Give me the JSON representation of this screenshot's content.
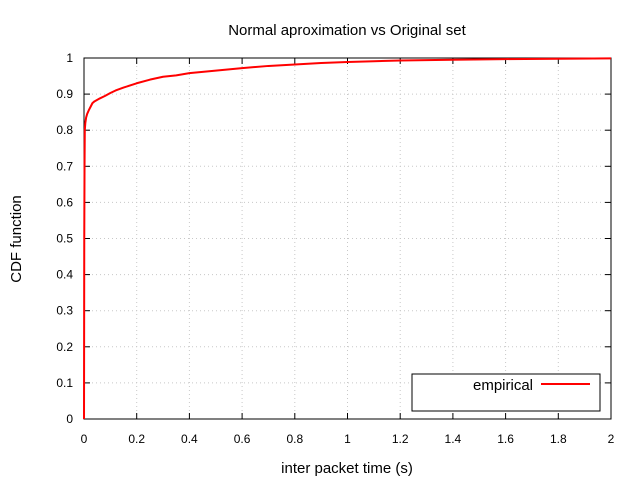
{
  "chart_data": {
    "type": "line",
    "title": "Normal aproximation vs Original set",
    "xlabel": "inter packet time (s)",
    "ylabel": "CDF function",
    "xlim": [
      0,
      2
    ],
    "ylim": [
      0,
      1
    ],
    "xticks": [
      0,
      0.2,
      0.4,
      0.6,
      0.8,
      1,
      1.2,
      1.4,
      1.6,
      1.8,
      2
    ],
    "xtick_labels": [
      "0",
      "0.2",
      "0.4",
      "0.6",
      "0.8",
      "1",
      "1.2",
      "1.4",
      "1.6",
      "1.8",
      "2"
    ],
    "yticks": [
      0,
      0.1,
      0.2,
      0.3,
      0.4,
      0.5,
      0.6,
      0.7,
      0.8,
      0.9,
      1
    ],
    "ytick_labels": [
      "0",
      "0.1",
      "0.2",
      "0.3",
      "0.4",
      "0.5",
      "0.6",
      "0.7",
      "0.8",
      "0.9",
      "1"
    ],
    "grid": true,
    "legend_position": "bottom-right",
    "series": [
      {
        "name": "empirical",
        "color": "#ff0000",
        "x": [
          0,
          0.001,
          0.002,
          0.003,
          0.005,
          0.008,
          0.012,
          0.018,
          0.025,
          0.032,
          0.04,
          0.06,
          0.08,
          0.1,
          0.12,
          0.15,
          0.2,
          0.25,
          0.3,
          0.35,
          0.4,
          0.5,
          0.6,
          0.7,
          0.8,
          0.9,
          1.0,
          1.1,
          1.2,
          1.4,
          1.6,
          1.8,
          2.0
        ],
        "y": [
          0,
          0.5,
          0.7,
          0.8,
          0.82,
          0.835,
          0.845,
          0.855,
          0.865,
          0.875,
          0.88,
          0.888,
          0.895,
          0.903,
          0.91,
          0.918,
          0.93,
          0.94,
          0.948,
          0.952,
          0.958,
          0.965,
          0.972,
          0.978,
          0.982,
          0.986,
          0.989,
          0.991,
          0.993,
          0.995,
          0.997,
          0.998,
          0.999
        ]
      }
    ]
  }
}
